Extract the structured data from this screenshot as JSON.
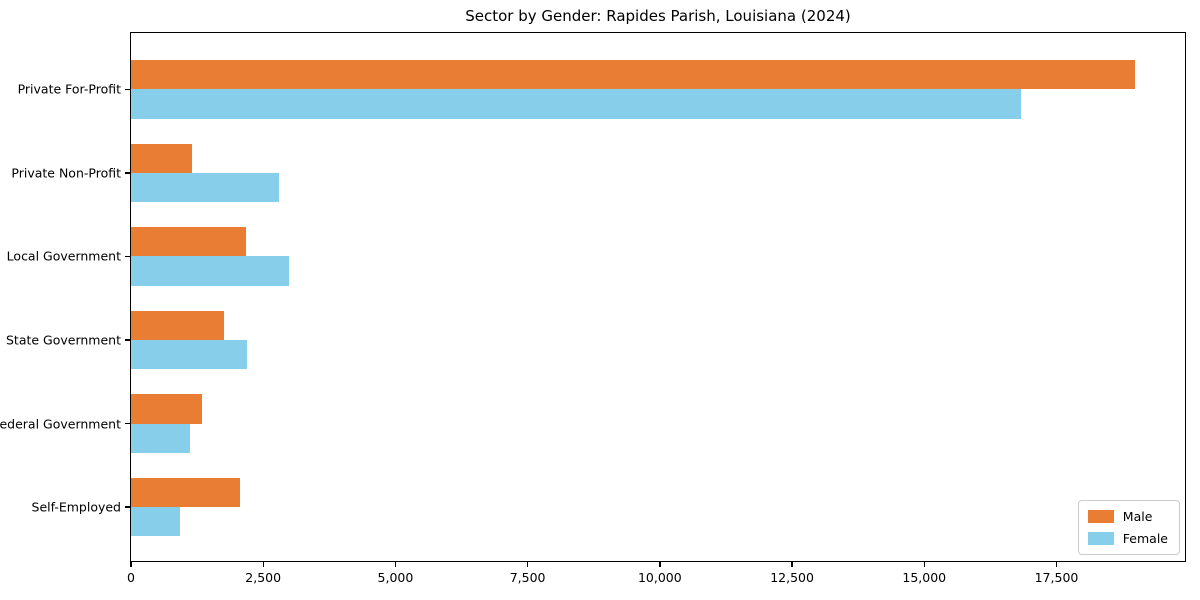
{
  "chart_data": {
    "type": "bar",
    "orientation": "horizontal",
    "title": "Sector by Gender: Rapides Parish, Louisiana (2024)",
    "categories": [
      "Private For-Profit",
      "Private Non-Profit",
      "Local Government",
      "State Government",
      "Federal Government",
      "Self-Employed"
    ],
    "series": [
      {
        "name": "Male",
        "color": "#e87d33",
        "values": [
          18980,
          1150,
          2180,
          1750,
          1345,
          2065
        ]
      },
      {
        "name": "Female",
        "color": "#87ceeb",
        "values": [
          16820,
          2790,
          2980,
          2195,
          1120,
          920
        ]
      }
    ],
    "xlabel": "",
    "ylabel": "",
    "xlim": [
      0,
      19930
    ],
    "xticks": [
      {
        "value": 0,
        "label": "0"
      },
      {
        "value": 2500,
        "label": "2,500"
      },
      {
        "value": 5000,
        "label": "5,000"
      },
      {
        "value": 7500,
        "label": "7,500"
      },
      {
        "value": 10000,
        "label": "10,000"
      },
      {
        "value": 12500,
        "label": "12,500"
      },
      {
        "value": 15000,
        "label": "15,000"
      },
      {
        "value": 17500,
        "label": "17,500"
      }
    ],
    "grid": false,
    "legend": {
      "position": "lower right",
      "entries": [
        "Male",
        "Female"
      ]
    },
    "bar_group": {
      "bar_height_fraction": 0.35,
      "y_units": 6.32,
      "y_pad": 0.675
    }
  }
}
